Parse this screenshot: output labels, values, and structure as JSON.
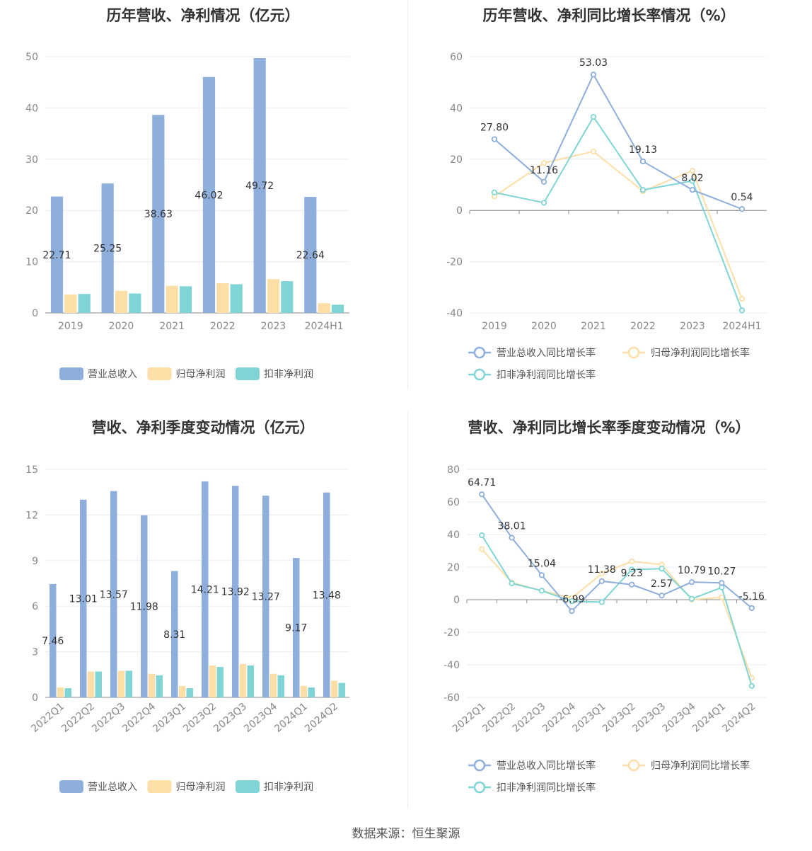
{
  "footer": "数据来源：恒生聚源",
  "colors": {
    "revenue": "#8eaedb",
    "net": "#fddea6",
    "deduct": "#7fd5d5",
    "grid": "#e8ecf4",
    "axis": "#888888"
  },
  "chart_data": [
    {
      "type": "bar",
      "title": "历年营收、净利情况（亿元）",
      "categories": [
        "2019",
        "2020",
        "2021",
        "2022",
        "2023",
        "2024H1"
      ],
      "ylim": [
        0,
        50
      ],
      "yticks": [
        0,
        10,
        20,
        30,
        40,
        50
      ],
      "series": [
        {
          "name": "营业总收入",
          "values": [
            22.71,
            25.25,
            38.63,
            46.02,
            49.72,
            22.64
          ],
          "labels": [
            "22.71",
            "25.25",
            "38.63",
            "46.02",
            "49.72",
            "22.64"
          ]
        },
        {
          "name": "归母净利润",
          "values": [
            3.6,
            4.3,
            5.3,
            5.8,
            6.6,
            1.9
          ]
        },
        {
          "name": "扣非净利润",
          "values": [
            3.7,
            3.8,
            5.2,
            5.6,
            6.2,
            1.6
          ]
        }
      ],
      "legend": "bottom"
    },
    {
      "type": "line",
      "title": "历年营收、净利同比增长率情况（%）",
      "categories": [
        "2019",
        "2020",
        "2021",
        "2022",
        "2023",
        "2024H1"
      ],
      "ylim": [
        -40,
        60
      ],
      "yticks": [
        -40,
        -20,
        0,
        20,
        40,
        60
      ],
      "series": [
        {
          "name": "营业总收入同比增长率",
          "values": [
            27.8,
            11.16,
            53.03,
            19.13,
            8.02,
            0.54
          ],
          "labels": [
            "27.80",
            "11.16",
            "53.03",
            "19.13",
            "8.02",
            "0.54"
          ]
        },
        {
          "name": "归母净利润同比增长率",
          "values": [
            5.5,
            18.5,
            23.0,
            7.5,
            15.5,
            -34.5
          ]
        },
        {
          "name": "扣非净利润同比增长率",
          "values": [
            7.0,
            3.0,
            36.5,
            8.0,
            11.5,
            -39.0
          ]
        }
      ],
      "legend": "bottom"
    },
    {
      "type": "bar",
      "title": "营收、净利季度变动情况（亿元）",
      "categories": [
        "2022Q1",
        "2022Q2",
        "2022Q3",
        "2022Q4",
        "2023Q1",
        "2023Q2",
        "2023Q3",
        "2023Q4",
        "2024Q1",
        "2024Q2"
      ],
      "ylim": [
        0,
        15
      ],
      "yticks": [
        0,
        3,
        6,
        9,
        12,
        15
      ],
      "series": [
        {
          "name": "营业总收入",
          "values": [
            7.46,
            13.01,
            13.57,
            11.98,
            8.31,
            14.21,
            13.92,
            13.27,
            9.17,
            13.48
          ],
          "labels": [
            "7.46",
            "13.01",
            "13.57",
            "11.98",
            "8.31",
            "14.21",
            "13.92",
            "13.27",
            "9.17",
            "13.48"
          ]
        },
        {
          "name": "归母净利润",
          "values": [
            0.65,
            1.7,
            1.75,
            1.55,
            0.75,
            2.1,
            2.2,
            1.55,
            0.75,
            1.1
          ]
        },
        {
          "name": "扣非净利润",
          "values": [
            0.6,
            1.7,
            1.75,
            1.45,
            0.6,
            2.0,
            2.1,
            1.45,
            0.65,
            0.95
          ]
        }
      ],
      "legend": "bottom"
    },
    {
      "type": "line",
      "title": "营收、净利同比增长率季度变动情况（%）",
      "categories": [
        "2022Q1",
        "2022Q2",
        "2022Q3",
        "2022Q4",
        "2023Q1",
        "2023Q2",
        "2023Q3",
        "2023Q4",
        "2024Q1",
        "2024Q2"
      ],
      "ylim": [
        -60,
        80
      ],
      "yticks": [
        -60,
        -40,
        -20,
        0,
        20,
        40,
        60,
        80
      ],
      "series": [
        {
          "name": "营业总收入同比增长率",
          "values": [
            64.71,
            38.01,
            15.04,
            -6.99,
            11.38,
            9.23,
            2.57,
            10.79,
            10.27,
            -5.16
          ],
          "labels": [
            "64.71",
            "38.01",
            "15.04",
            "-6.99",
            "11.38",
            "9.23",
            "2.57",
            "10.79",
            "10.27",
            "-5.16"
          ]
        },
        {
          "name": "归母净利润同比增长率",
          "values": [
            31.0,
            10.5,
            5.5,
            1.0,
            16.0,
            23.5,
            21.5,
            0.0,
            1.5,
            -48.0
          ]
        },
        {
          "name": "扣非净利润同比增长率",
          "values": [
            39.5,
            10.0,
            5.5,
            -1.0,
            -1.5,
            18.5,
            19.0,
            0.5,
            7.5,
            -53.0
          ]
        }
      ],
      "legend": "bottom"
    }
  ]
}
